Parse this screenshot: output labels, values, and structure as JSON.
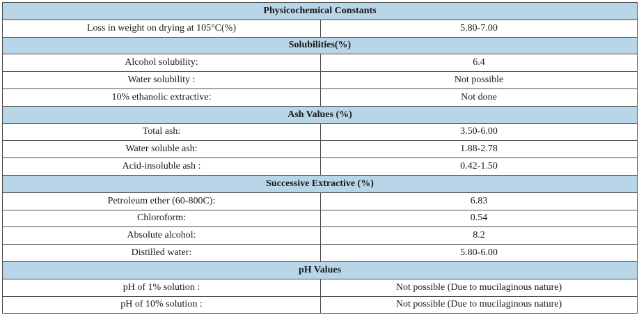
{
  "sections": [
    {
      "title": "Physicochemical Constants",
      "rows": [
        {
          "label": "Loss in weight on drying at 105°C(%)",
          "value": "5.80-7.00"
        }
      ]
    },
    {
      "title": "Solubilities(%)",
      "rows": [
        {
          "label": "Alcohol solubility:",
          "value": "6.4"
        },
        {
          "label": "Water solubility :",
          "value": "Not possible"
        },
        {
          "label": "10% ethanolic extractive:",
          "value": "Not done"
        }
      ]
    },
    {
      "title": "Ash Values (%)",
      "rows": [
        {
          "label": "Total ash:",
          "value": "3.50-6.00"
        },
        {
          "label": "Water soluble ash:",
          "value": "1.88-2.78"
        },
        {
          "label": "Acid-insoluble ash :",
          "value": "0.42-1.50"
        }
      ]
    },
    {
      "title": "Successive Extractive (%)",
      "rows": [
        {
          "label": "Petroleum ether (60-800C):",
          "value": "6.83"
        },
        {
          "label": "Chloroform:",
          "value": "0.54"
        },
        {
          "label": "Absolute alcohol:",
          "value": "8.2"
        },
        {
          "label": "Distilled water:",
          "value": "5.80-6.00"
        }
      ]
    },
    {
      "title": "pH Values",
      "rows": [
        {
          "label": "pH of 1% solution :",
          "value": "Not possible (Due to mucilaginous nature)"
        },
        {
          "label": "pH of 10% solution :",
          "value": "Not possible (Due to mucilaginous nature)"
        }
      ]
    }
  ],
  "colors": {
    "section_header_bg": "#b9d5e8",
    "border": "#4a4a4a"
  }
}
